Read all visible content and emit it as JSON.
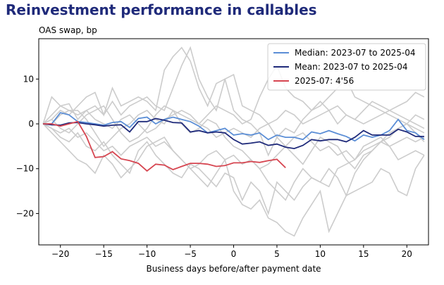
{
  "title": "Reinvestment performance in callables",
  "chart_data": {
    "type": "line",
    "ylabel": "OAS swap, bp",
    "xlabel": "Business days before/after payment date",
    "xlim": [
      -22.5,
      22.5
    ],
    "ylim": [
      -27,
      19
    ],
    "xticks": [
      -20,
      -15,
      -10,
      -5,
      0,
      5,
      10,
      15,
      20
    ],
    "yticks": [
      -20,
      -10,
      0,
      10
    ],
    "grid": false,
    "legend_position": "top-right",
    "background_color": "#cccccc",
    "background_series": [
      {
        "x": [
          -22,
          -21,
          -20,
          -19,
          -18,
          -17,
          -16,
          -15,
          -14,
          -13,
          -12,
          -11,
          -10,
          -9,
          -8,
          -7,
          -6,
          -5,
          -4,
          -3,
          -2,
          -1,
          0,
          1,
          2,
          3,
          4,
          5,
          6,
          7,
          8,
          9,
          10,
          11,
          12,
          13,
          14,
          15,
          16,
          17,
          18,
          19,
          20,
          21,
          22
        ],
        "y": [
          0,
          6,
          4,
          4.5,
          1,
          3,
          4,
          2,
          5,
          2,
          4,
          5,
          6,
          4,
          3,
          8,
          13,
          17,
          10,
          6,
          3,
          10,
          11,
          4,
          3,
          2,
          0,
          -3,
          -1,
          -2,
          1,
          3,
          5,
          3,
          0,
          2,
          1,
          3,
          5,
          4,
          3,
          4,
          5,
          7,
          6
        ]
      },
      {
        "x": [
          -22,
          -21,
          -20,
          -19,
          -18,
          -17,
          -16,
          -15,
          -14,
          -13,
          -12,
          -11,
          -10,
          -9,
          -8,
          -7,
          -6,
          -5,
          -4,
          -3,
          -2,
          -1,
          0,
          1,
          2,
          3,
          4,
          5,
          6,
          7,
          8,
          9,
          10,
          11,
          12,
          13,
          14,
          15,
          16,
          17,
          18,
          19,
          20,
          21,
          22
        ],
        "y": [
          0,
          1,
          3,
          2,
          4,
          6,
          7,
          2,
          8,
          4,
          5,
          6,
          5,
          3,
          12,
          15,
          17,
          14,
          8,
          4,
          9,
          10,
          3,
          1,
          0,
          -2,
          -7,
          -3,
          -5,
          -7,
          -9,
          -6,
          -3,
          -4,
          -5,
          -8,
          -10,
          -7,
          -6,
          -4,
          -2,
          -1,
          0,
          -2,
          -4
        ]
      },
      {
        "x": [
          -22,
          -21,
          -20,
          -19,
          -18,
          -17,
          -16,
          -15,
          -14,
          -13,
          -12,
          -11,
          -10,
          -9,
          -8,
          -7,
          -6,
          -5,
          -4,
          -3,
          -2,
          -1,
          0,
          1,
          2,
          3,
          4,
          5,
          6,
          7,
          8,
          9,
          10,
          11,
          12,
          13,
          14,
          15,
          16,
          17,
          18,
          19,
          20,
          21,
          22
        ],
        "y": [
          0,
          -2,
          -4,
          -6,
          -8,
          -9,
          -11,
          -7,
          -9,
          -12,
          -10,
          -8,
          -5,
          -4,
          -3,
          -6,
          -8,
          -10,
          -12,
          -14,
          -11,
          -8,
          -15,
          -18,
          -19,
          -17,
          -21,
          -22,
          -24,
          -25,
          -21,
          -18,
          -15,
          -24,
          -20,
          -16,
          -15,
          -14,
          -13,
          -10,
          -11,
          -15,
          -16,
          -10,
          -7
        ]
      },
      {
        "x": [
          -22,
          -21,
          -20,
          -19,
          -18,
          -17,
          -16,
          -15,
          -14,
          -13,
          -12,
          -11,
          -10,
          -9,
          -8,
          -7,
          -6,
          -5,
          -4,
          -3,
          -2,
          -1,
          0,
          1,
          2,
          3,
          4,
          5,
          6,
          7,
          8,
          9,
          10,
          11,
          12,
          13,
          14,
          15,
          16,
          17,
          18,
          19,
          20,
          21,
          22
        ],
        "y": [
          0,
          -1,
          -3,
          -4,
          -2,
          -5,
          -6,
          -4,
          -7,
          -9,
          -11,
          -6,
          -4,
          -7,
          -9,
          -11,
          -12,
          -9,
          -10,
          -12,
          -14,
          -11,
          -12,
          -17,
          -13,
          -15,
          -20,
          -13,
          -15,
          -17,
          -14,
          -12,
          -13,
          -10,
          -12,
          -16,
          -11,
          -8,
          -6,
          -4,
          -5,
          -8,
          -7,
          -6,
          -7
        ]
      },
      {
        "x": [
          -22,
          -21,
          -20,
          -19,
          -18,
          -17,
          -16,
          -15,
          -14,
          -13,
          -12,
          -11,
          -10,
          -9,
          -8,
          -7,
          -6,
          -5,
          -4,
          -3,
          -2,
          -1,
          0,
          1,
          2,
          3,
          4,
          5,
          6,
          7,
          8,
          9,
          10,
          11,
          12,
          13,
          14,
          15,
          16,
          17,
          18,
          19,
          20,
          21,
          22
        ],
        "y": [
          0,
          0,
          2,
          3,
          3,
          1,
          -2,
          -5,
          -3,
          -1,
          0,
          2,
          3,
          1,
          0,
          3,
          2,
          1,
          0,
          2,
          4,
          3,
          2,
          0,
          1,
          6,
          10,
          13,
          8,
          6,
          5,
          3,
          4,
          6,
          8,
          10,
          6,
          5,
          4,
          3,
          2,
          1,
          0,
          -1,
          -2
        ]
      },
      {
        "x": [
          -22,
          -21,
          -20,
          -19,
          -18,
          -17,
          -16,
          -15,
          -14,
          -13,
          -12,
          -11,
          -10,
          -9,
          -8,
          -7,
          -6,
          -5,
          -4,
          -3,
          -2,
          -1,
          0,
          1,
          2,
          3,
          4,
          5,
          6,
          7,
          8,
          9,
          10,
          11,
          12,
          13,
          14,
          15,
          16,
          17,
          18,
          19,
          20,
          21,
          22
        ],
        "y": [
          0,
          1,
          -1,
          -2,
          0,
          2,
          3,
          4,
          1,
          -2,
          -4,
          -3,
          -1,
          2,
          4,
          3,
          0,
          -2,
          -1,
          1,
          0,
          -3,
          -5,
          -6,
          -8,
          -10,
          -13,
          -15,
          -17,
          -13,
          -10,
          -12,
          -13,
          -14,
          -10,
          -9,
          -8,
          -6,
          -5,
          -4,
          -3,
          -1,
          0,
          2,
          1
        ]
      },
      {
        "x": [
          -22,
          -21,
          -20,
          -19,
          -18,
          -17,
          -16,
          -15,
          -14,
          -13,
          -12,
          -11,
          -10,
          -9,
          -8,
          -7,
          -6,
          -5,
          -4,
          -3,
          -2,
          -1,
          0,
          1,
          2,
          3,
          4,
          5,
          6,
          7,
          8,
          9,
          10,
          11,
          12,
          13,
          14,
          15,
          16,
          17,
          18,
          19,
          20,
          21,
          22
        ],
        "y": [
          0,
          -1,
          -2,
          -1,
          -3,
          -2,
          -4,
          -6,
          -5,
          -7,
          -5,
          -4,
          -3,
          -5,
          -4,
          -6,
          -8,
          -10,
          -9,
          -7,
          -6,
          -8,
          -7,
          -9,
          -8,
          -10,
          -9,
          -7,
          -5,
          -3,
          -2,
          -4,
          -6,
          -5,
          -7,
          -6,
          -8,
          -5,
          -4,
          -3,
          -5,
          -4,
          -3,
          -4,
          -3
        ]
      },
      {
        "x": [
          -22,
          -21,
          -20,
          -19,
          -18,
          -17,
          -16,
          -15,
          -14,
          -13,
          -12,
          -11,
          -10,
          -9,
          -8,
          -7,
          -6,
          -5,
          -4,
          -3,
          -2,
          -1,
          0,
          1,
          2,
          3,
          4,
          5,
          6,
          7,
          8,
          9,
          10,
          11,
          12,
          13,
          14,
          15,
          16,
          17,
          18,
          19,
          20,
          21,
          22
        ],
        "y": [
          0,
          2,
          4,
          3,
          2,
          3,
          1,
          0,
          -1,
          1,
          2,
          0,
          -2,
          -1,
          1,
          2,
          3,
          2,
          0,
          -1,
          -3,
          -2,
          -1,
          -2,
          -3,
          -1,
          0,
          1,
          3,
          2,
          0,
          1,
          2,
          3,
          4,
          2,
          1,
          0,
          1,
          2,
          3,
          2,
          1,
          0,
          -1
        ]
      }
    ],
    "series": [
      {
        "name": "Median: 2023-07 to 2025-04",
        "color": "#5b8ed6",
        "x": [
          -22,
          -21,
          -20,
          -19,
          -18,
          -17,
          -16,
          -15,
          -14,
          -13,
          -12,
          -11,
          -10,
          -9,
          -8,
          -7,
          -6,
          -5,
          -4,
          -3,
          -2,
          -1,
          0,
          1,
          2,
          3,
          4,
          5,
          6,
          7,
          8,
          9,
          10,
          11,
          12,
          13,
          14,
          15,
          16,
          17,
          18,
          19,
          20,
          21,
          22
        ],
        "y": [
          0,
          0,
          2.5,
          2,
          0.5,
          0.3,
          0,
          -0.3,
          0.3,
          0.5,
          -0.8,
          1.2,
          1.5,
          0,
          1,
          1.5,
          1,
          0.5,
          -0.5,
          -2,
          -1.5,
          -1,
          -2.5,
          -2.2,
          -2.5,
          -2,
          -3.5,
          -2.5,
          -3,
          -3,
          -3.5,
          -1.8,
          -2.2,
          -1.5,
          -2.2,
          -2.8,
          -3.8,
          -2.5,
          -3,
          -2.5,
          -1.5,
          1,
          -1.5,
          -2,
          -3.5
        ]
      },
      {
        "name": "Mean: 2023-07 to 2025-04",
        "color": "#1f2a7a",
        "x": [
          -22,
          -21,
          -20,
          -19,
          -18,
          -17,
          -16,
          -15,
          -14,
          -13,
          -12,
          -11,
          -10,
          -9,
          -8,
          -7,
          -6,
          -5,
          -4,
          -3,
          -2,
          -1,
          0,
          1,
          2,
          3,
          4,
          5,
          6,
          7,
          8,
          9,
          10,
          11,
          12,
          13,
          14,
          15,
          16,
          17,
          18,
          19,
          20,
          21,
          22
        ],
        "y": [
          0,
          -0.2,
          -0.3,
          0.2,
          0.3,
          0,
          -0.2,
          -0.5,
          -0.3,
          -0.2,
          -1.8,
          0.5,
          0.5,
          1.2,
          0.8,
          0.3,
          0.2,
          -1.8,
          -1.5,
          -2,
          -1.8,
          -2,
          -3.5,
          -4.5,
          -4.3,
          -4,
          -4.8,
          -4.5,
          -5.2,
          -5.5,
          -4.8,
          -3.5,
          -3.8,
          -3.5,
          -3.5,
          -4,
          -3,
          -1.5,
          -2.5,
          -2.5,
          -2.5,
          -1.2,
          -1.8,
          -2.8,
          -2.8
        ]
      },
      {
        "name": "2025-07: 4'56",
        "color": "#d64550",
        "x": [
          -22,
          -21,
          -20,
          -19,
          -18,
          -17,
          -16,
          -15,
          -14,
          -13,
          -12,
          -11,
          -10,
          -9,
          -8,
          -7,
          -6,
          -5,
          -4,
          -3,
          -2,
          -1,
          0,
          1,
          2,
          3,
          4,
          5,
          6
        ],
        "y": [
          0,
          0,
          -0.5,
          0,
          0.5,
          -2.8,
          -7.5,
          -7.3,
          -6.2,
          -7.8,
          -8.2,
          -8.8,
          -10.5,
          -9,
          -9.2,
          -10.2,
          -9.5,
          -8.8,
          -8.8,
          -9,
          -9.5,
          -9.3,
          -8.7,
          -8.7,
          -8.4,
          -8.6,
          -8.2,
          -7.9,
          -9.8
        ]
      }
    ]
  }
}
